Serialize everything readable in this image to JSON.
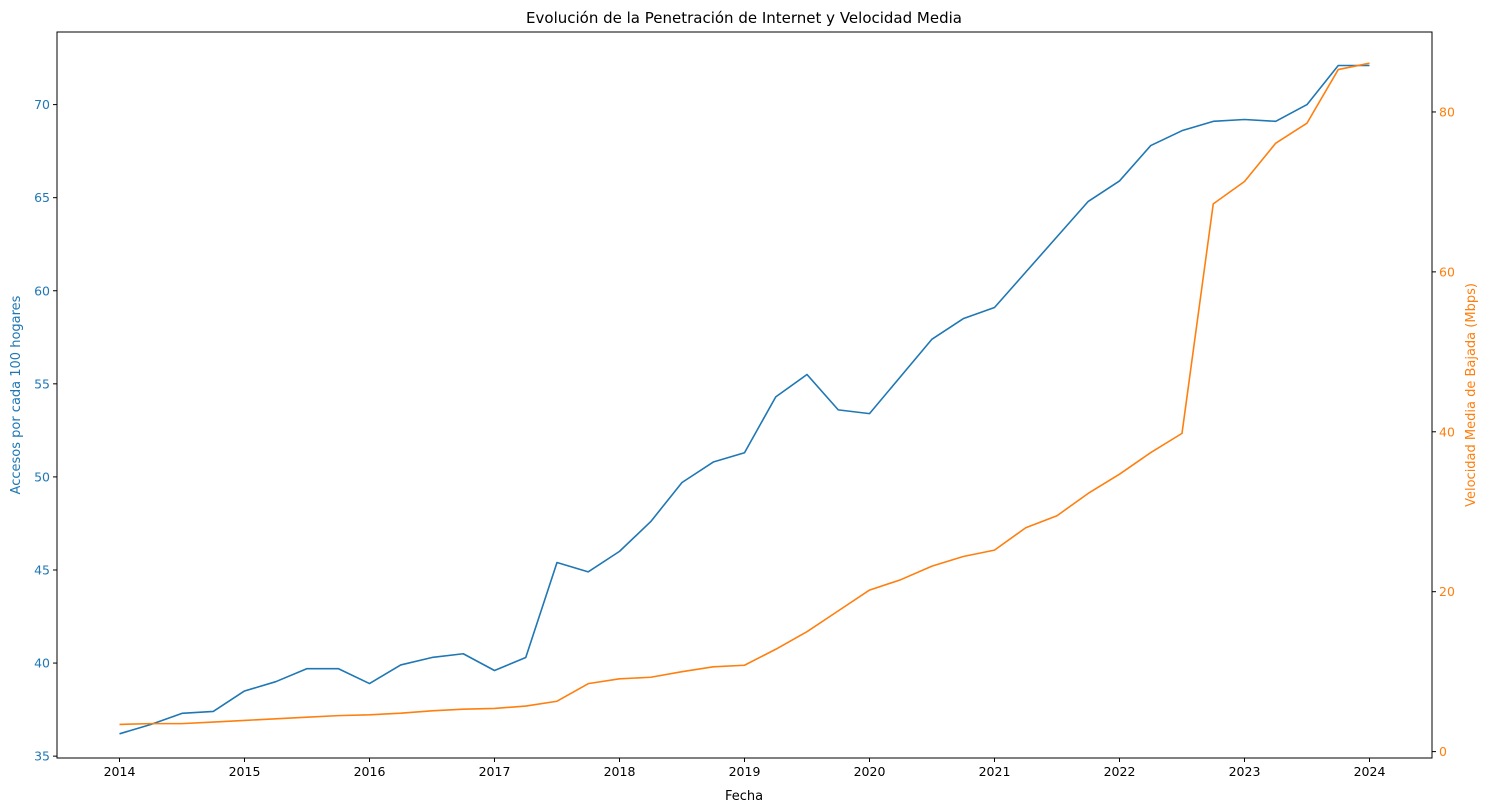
{
  "chart_data": {
    "type": "line",
    "title": "Evolución de la Penetración de Internet y Velocidad Media",
    "xlabel": "Fecha",
    "ylabel_left": "Accesos por cada 100 hogares",
    "ylabel_right": "Velocidad Media de Bajada (Mbps)",
    "x_ticks": [
      "2014",
      "2015",
      "2016",
      "2017",
      "2018",
      "2019",
      "2020",
      "2021",
      "2022",
      "2023",
      "2024"
    ],
    "y_left_ticks": [
      35,
      40,
      45,
      50,
      55,
      60,
      65,
      70
    ],
    "y_right_ticks": [
      0,
      20,
      40,
      60,
      80
    ],
    "xlim": [
      "2013-07",
      "2024-07"
    ],
    "ylim_left": [
      34.9,
      73.9
    ],
    "ylim_right": [
      -0.8,
      90
    ],
    "grid": false,
    "legend": "none",
    "x": [
      "2014-01",
      "2014-04",
      "2014-07",
      "2014-10",
      "2015-01",
      "2015-04",
      "2015-07",
      "2015-10",
      "2016-01",
      "2016-04",
      "2016-07",
      "2016-10",
      "2017-01",
      "2017-04",
      "2017-07",
      "2017-10",
      "2018-01",
      "2018-04",
      "2018-07",
      "2018-10",
      "2019-01",
      "2019-04",
      "2019-07",
      "2019-10",
      "2020-01",
      "2020-04",
      "2020-07",
      "2020-10",
      "2021-01",
      "2021-04",
      "2021-07",
      "2021-10",
      "2022-01",
      "2022-04",
      "2022-07",
      "2022-10",
      "2023-01",
      "2023-04",
      "2023-07",
      "2023-10",
      "2024-01"
    ],
    "series": [
      {
        "axis": "left",
        "color": "#1f77b4",
        "values": [
          36.2,
          36.7,
          37.3,
          37.4,
          38.5,
          39.0,
          39.7,
          39.7,
          38.9,
          39.9,
          40.3,
          40.5,
          39.6,
          40.3,
          45.4,
          44.9,
          46.0,
          47.6,
          49.7,
          50.8,
          51.3,
          54.3,
          55.5,
          53.6,
          53.4,
          55.4,
          57.4,
          58.5,
          59.1,
          61.0,
          62.9,
          64.8,
          65.9,
          67.8,
          68.6,
          69.1,
          69.2,
          69.1,
          70.0,
          72.1,
          72.1
        ]
      },
      {
        "axis": "right",
        "color": "#ff7f0e",
        "values": [
          3.4,
          3.5,
          3.5,
          3.7,
          3.9,
          4.1,
          4.3,
          4.5,
          4.6,
          4.8,
          5.1,
          5.3,
          5.4,
          5.7,
          6.3,
          8.5,
          9.1,
          9.3,
          10.0,
          10.6,
          10.8,
          12.8,
          15.0,
          17.6,
          20.2,
          21.5,
          23.2,
          24.4,
          25.2,
          28.0,
          29.5,
          32.3,
          34.7,
          37.4,
          39.8,
          68.5,
          71.3,
          76.1,
          78.6,
          85.3,
          86.1
        ]
      }
    ]
  }
}
